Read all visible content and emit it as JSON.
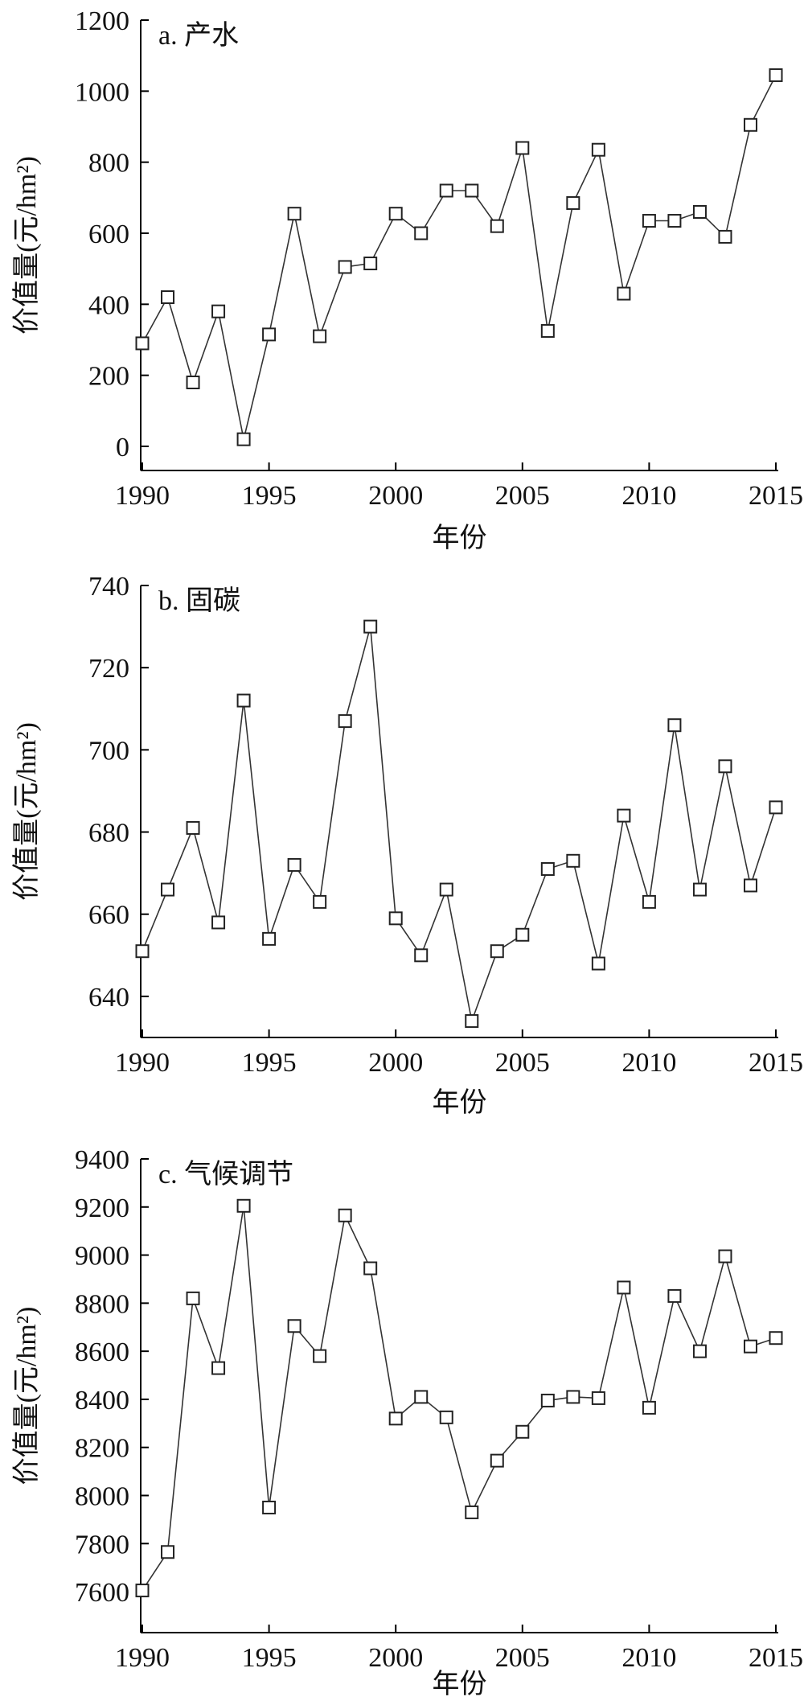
{
  "chart_data": [
    {
      "type": "line",
      "title": "a. 产水",
      "xlabel": "年份",
      "ylabel": "价值量(元/hm²)",
      "x": [
        1990,
        1991,
        1992,
        1993,
        1994,
        1995,
        1996,
        1997,
        1998,
        1999,
        2000,
        2001,
        2002,
        2003,
        2004,
        2005,
        2006,
        2007,
        2008,
        2009,
        2010,
        2011,
        2012,
        2013,
        2014,
        2015
      ],
      "values": [
        290,
        420,
        180,
        380,
        20,
        315,
        655,
        310,
        505,
        515,
        655,
        600,
        720,
        720,
        620,
        840,
        325,
        685,
        835,
        430,
        635,
        635,
        660,
        590,
        905,
        1045
      ],
      "xlim": [
        1990,
        2015
      ],
      "ylim": [
        0,
        1200
      ],
      "xticks": [
        1990,
        1995,
        2000,
        2005,
        2010,
        2015
      ],
      "yticks": [
        0,
        200,
        400,
        600,
        800,
        1000,
        1200
      ],
      "marker": "square-open",
      "grid": false
    },
    {
      "type": "line",
      "title": "b. 固碳",
      "xlabel": "年份",
      "ylabel": "价值量(元/hm²)",
      "x": [
        1990,
        1991,
        1992,
        1993,
        1994,
        1995,
        1996,
        1997,
        1998,
        1999,
        2000,
        2001,
        2002,
        2003,
        2004,
        2005,
        2006,
        2007,
        2008,
        2009,
        2010,
        2011,
        2012,
        2013,
        2014,
        2015
      ],
      "values": [
        651,
        666,
        681,
        658,
        712,
        654,
        672,
        663,
        707,
        730,
        659,
        650,
        666,
        634,
        651,
        655,
        671,
        673,
        648,
        684,
        663,
        706,
        666,
        696,
        667,
        686
      ],
      "xlim": [
        1990,
        2015
      ],
      "ylim": [
        630,
        740
      ],
      "xticks": [
        1990,
        1995,
        2000,
        2005,
        2010,
        2015
      ],
      "yticks": [
        640,
        660,
        680,
        700,
        720,
        740
      ],
      "marker": "square-open",
      "grid": false
    },
    {
      "type": "line",
      "title": "c. 气候调节",
      "xlabel": "年份",
      "ylabel": "价值量(元/hm²)",
      "x": [
        1990,
        1991,
        1992,
        1993,
        1994,
        1995,
        1996,
        1997,
        1998,
        1999,
        2000,
        2001,
        2002,
        2003,
        2004,
        2005,
        2006,
        2007,
        2008,
        2009,
        2010,
        2011,
        2012,
        2013,
        2014,
        2015
      ],
      "values": [
        7605,
        7765,
        8820,
        8530,
        9205,
        7950,
        8705,
        8580,
        9165,
        8945,
        8320,
        8410,
        8325,
        7930,
        8145,
        8265,
        8395,
        8410,
        8405,
        8865,
        8365,
        8830,
        8600,
        8995,
        8620,
        8655
      ],
      "xlim": [
        1990,
        2015
      ],
      "ylim": [
        7530,
        9400
      ],
      "xticks": [
        1990,
        1995,
        2000,
        2005,
        2010,
        2015
      ],
      "yticks": [
        7600,
        7800,
        8000,
        8200,
        8400,
        8600,
        8800,
        9000,
        9200,
        9400
      ],
      "marker": "square-open",
      "grid": false
    }
  ]
}
